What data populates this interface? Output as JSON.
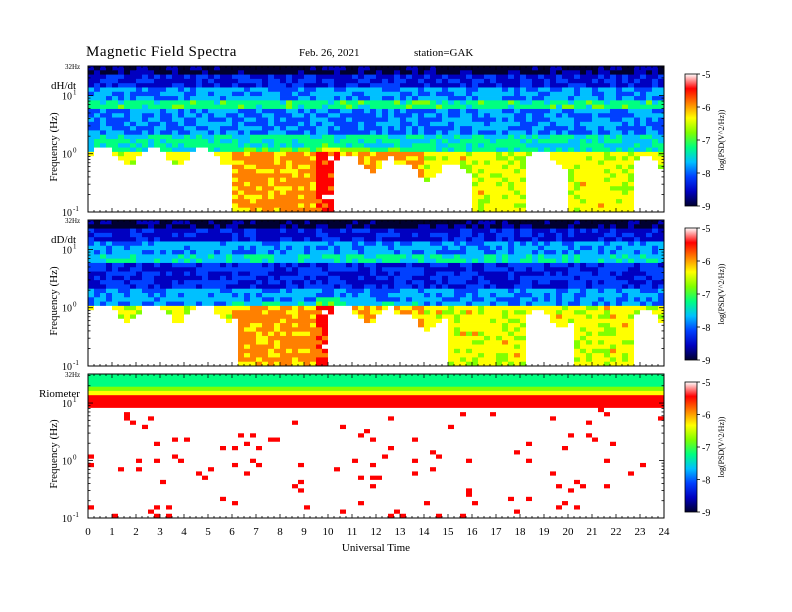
{
  "header": {
    "title": "Magnetic  Field  Spectra",
    "date": "Feb. 26, 2021",
    "station": "station=GAK"
  },
  "chart_data": [
    {
      "type": "heatmap",
      "panel_label": "dH/dt",
      "ylabel": "Frequency  (Hz)",
      "xlabel": "",
      "top_label": "32Hz",
      "y_ticks": [
        {
          "label": "10",
          "exp": "1"
        },
        {
          "label": "10",
          "exp": "0"
        },
        {
          "label": "10",
          "exp": "-1"
        }
      ],
      "y_scale": "log",
      "ylim": [
        0.1,
        32
      ],
      "xlim": [
        0,
        24
      ],
      "colorbar": {
        "label": "log(PSD(V^2/Hz))",
        "ticks": [
          "-5",
          "-6",
          "-7",
          "-8",
          "-9"
        ],
        "range": [
          -9,
          -5
        ]
      },
      "description_levels": {
        "top_band": -8.8,
        "line_near_6hz": -7.4,
        "mid": -7.8,
        "low_freq": -6.3
      }
    },
    {
      "type": "heatmap",
      "panel_label": "dD/dt",
      "ylabel": "Frequency  (Hz)",
      "xlabel": "",
      "top_label": "32Hz",
      "y_ticks": [
        {
          "label": "10",
          "exp": "1"
        },
        {
          "label": "10",
          "exp": "0"
        },
        {
          "label": "10",
          "exp": "-1"
        }
      ],
      "y_scale": "log",
      "ylim": [
        0.1,
        32
      ],
      "xlim": [
        0,
        24
      ],
      "colorbar": {
        "label": "log(PSD(V^2/Hz))",
        "ticks": [
          "-5",
          "-6",
          "-7",
          "-8",
          "-9"
        ],
        "range": [
          -9,
          -5
        ]
      }
    },
    {
      "type": "heatmap",
      "panel_label": "Riometer",
      "ylabel": "Frequency  (Hz)",
      "xlabel": "Universal  Time",
      "top_label": "32Hz",
      "y_ticks": [
        {
          "label": "10",
          "exp": "1"
        },
        {
          "label": "10",
          "exp": "0"
        },
        {
          "label": "10",
          "exp": "-1"
        }
      ],
      "y_scale": "log",
      "ylim": [
        0.1,
        32
      ],
      "xlim": [
        0,
        24
      ],
      "x_ticks": [
        "0",
        "1",
        "2",
        "3",
        "4",
        "5",
        "6",
        "7",
        "8",
        "9",
        "10",
        "11",
        "12",
        "13",
        "14",
        "15",
        "16",
        "17",
        "18",
        "19",
        "20",
        "21",
        "22",
        "23",
        "24"
      ],
      "colorbar": {
        "label": "log(PSD(V^2/Hz))",
        "ticks": [
          "-5",
          "-6",
          "-7",
          "-8",
          "-9"
        ],
        "range": [
          -9,
          -5
        ]
      }
    }
  ],
  "colors": {
    "colormap": [
      "#000040",
      "#0000ff",
      "#00a0ff",
      "#00ffa0",
      "#80ff00",
      "#ffff00",
      "#ff8000",
      "#ff0000",
      "#ffffff"
    ]
  }
}
